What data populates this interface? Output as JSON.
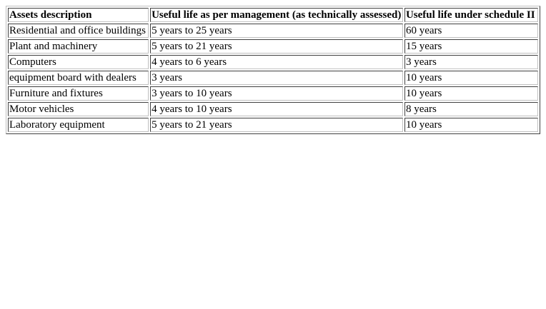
{
  "table": {
    "headers": [
      "Assets description",
      "Useful life as per management (as technically assessed)",
      "Useful life under schedule II"
    ],
    "rows": [
      [
        "Residential and office buildings",
        "5 years to 25 years",
        "60 years"
      ],
      [
        "Plant and machinery",
        "5 years to 21 years",
        "15 years"
      ],
      [
        "Computers",
        "4 years to 6 years",
        "3 years"
      ],
      [
        "equipment board with dealers",
        "3 years",
        "10 years"
      ],
      [
        "Furniture and fixtures",
        "3 years to 10 years",
        "10 years"
      ],
      [
        "Motor vehicles",
        "4 years to 10 years",
        "8 years"
      ],
      [
        "Laboratory equipment",
        "5 years to 21 years",
        "10 years"
      ]
    ]
  }
}
